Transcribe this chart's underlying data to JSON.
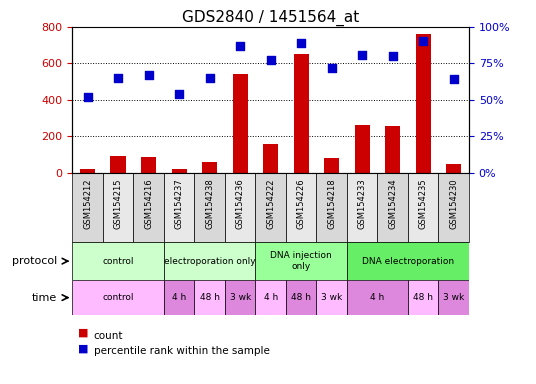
{
  "title": "GDS2840 / 1451564_at",
  "samples": [
    "GSM154212",
    "GSM154215",
    "GSM154216",
    "GSM154237",
    "GSM154238",
    "GSM154236",
    "GSM154222",
    "GSM154226",
    "GSM154218",
    "GSM154233",
    "GSM154234",
    "GSM154235",
    "GSM154230"
  ],
  "counts": [
    20,
    90,
    85,
    20,
    60,
    540,
    160,
    650,
    80,
    260,
    255,
    760,
    50
  ],
  "percentiles": [
    52,
    65,
    67,
    54,
    65,
    87,
    77,
    89,
    72,
    81,
    80,
    90,
    64
  ],
  "count_color": "#cc0000",
  "percentile_color": "#0000cc",
  "ylim_left": [
    0,
    800
  ],
  "ylim_right": [
    0,
    100
  ],
  "yticks_left": [
    0,
    200,
    400,
    600,
    800
  ],
  "yticks_right": [
    0,
    25,
    50,
    75,
    100
  ],
  "ytick_labels_right": [
    "0%",
    "25%",
    "50%",
    "75%",
    "100%"
  ],
  "protocol_groups": [
    {
      "label": "control",
      "start": 0,
      "end": 3,
      "color": "#ccffcc"
    },
    {
      "label": "electroporation only",
      "start": 3,
      "end": 6,
      "color": "#ccffcc"
    },
    {
      "label": "DNA injection\nonly",
      "start": 6,
      "end": 9,
      "color": "#99ff99"
    },
    {
      "label": "DNA electroporation",
      "start": 9,
      "end": 13,
      "color": "#66ee66"
    }
  ],
  "time_groups": [
    {
      "label": "control",
      "start": 0,
      "end": 3,
      "color": "#ffbbff"
    },
    {
      "label": "4 h",
      "start": 3,
      "end": 4,
      "color": "#dd88dd"
    },
    {
      "label": "48 h",
      "start": 4,
      "end": 5,
      "color": "#ffbbff"
    },
    {
      "label": "3 wk",
      "start": 5,
      "end": 6,
      "color": "#dd88dd"
    },
    {
      "label": "4 h",
      "start": 6,
      "end": 7,
      "color": "#ffbbff"
    },
    {
      "label": "48 h",
      "start": 7,
      "end": 8,
      "color": "#dd88dd"
    },
    {
      "label": "3 wk",
      "start": 8,
      "end": 9,
      "color": "#ffbbff"
    },
    {
      "label": "4 h",
      "start": 9,
      "end": 11,
      "color": "#dd88dd"
    },
    {
      "label": "48 h",
      "start": 11,
      "end": 12,
      "color": "#ffbbff"
    },
    {
      "label": "3 wk",
      "start": 12,
      "end": 13,
      "color": "#dd88dd"
    }
  ],
  "sample_bg_colors": [
    "#d8d8d8",
    "#e8e8e8",
    "#d8d8d8",
    "#e8e8e8",
    "#d8d8d8",
    "#e8e8e8",
    "#d8d8d8",
    "#e8e8e8",
    "#d8d8d8",
    "#e8e8e8",
    "#d8d8d8",
    "#e8e8e8",
    "#d8d8d8"
  ],
  "protocol_row_label": "protocol",
  "time_row_label": "time",
  "legend_count": "count",
  "legend_pct": "percentile rank within the sample",
  "bg_color": "#ffffff",
  "bar_width": 0.5,
  "dot_size": 35
}
